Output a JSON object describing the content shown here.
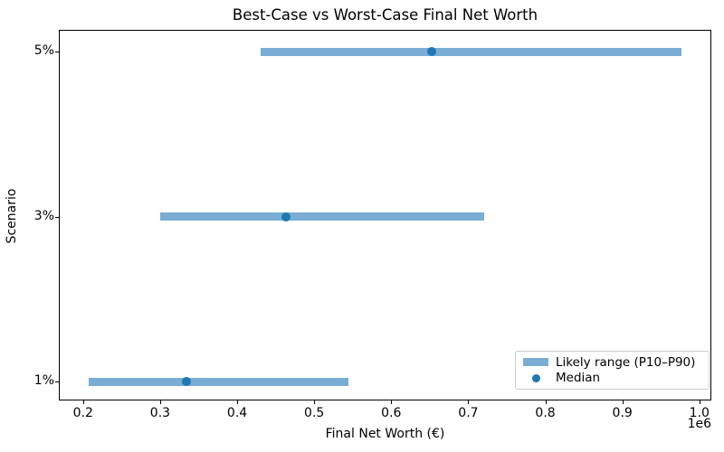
{
  "chart_data": {
    "type": "bar",
    "orientation": "horizontal",
    "title": "Best-Case vs Worst-Case Final Net Worth",
    "xlabel": "Final Net Worth (€)",
    "ylabel": "Scenario",
    "x_offset_label": "1e6",
    "categories": [
      "1%",
      "3%",
      "5%"
    ],
    "series": [
      {
        "name": "Likely range (P10–P90)",
        "type": "range-bar",
        "p10": [
          207000,
          300000,
          430000
        ],
        "p90": [
          544000,
          721000,
          977000
        ]
      },
      {
        "name": "Median",
        "type": "scatter",
        "values": [
          334000,
          463000,
          653000
        ]
      }
    ],
    "xticks": {
      "values": [
        200000,
        300000,
        400000,
        500000,
        600000,
        700000,
        800000,
        900000,
        1000000
      ],
      "labels": [
        "0.2",
        "0.3",
        "0.4",
        "0.5",
        "0.6",
        "0.7",
        "0.8",
        "0.9",
        "1.0"
      ]
    },
    "xlim": [
      168500,
      1015500
    ],
    "grid": false,
    "legend": {
      "position": "lower right",
      "entries": [
        {
          "label": "Likely range (P10–P90)",
          "marker": "patch"
        },
        {
          "label": "Median",
          "marker": "dot"
        }
      ]
    },
    "colors": {
      "range_bar": "#7aadd3",
      "median_dot": "#1f77b4",
      "axis": "#000000",
      "legend_border": "#cccccc",
      "background": "#ffffff"
    }
  }
}
